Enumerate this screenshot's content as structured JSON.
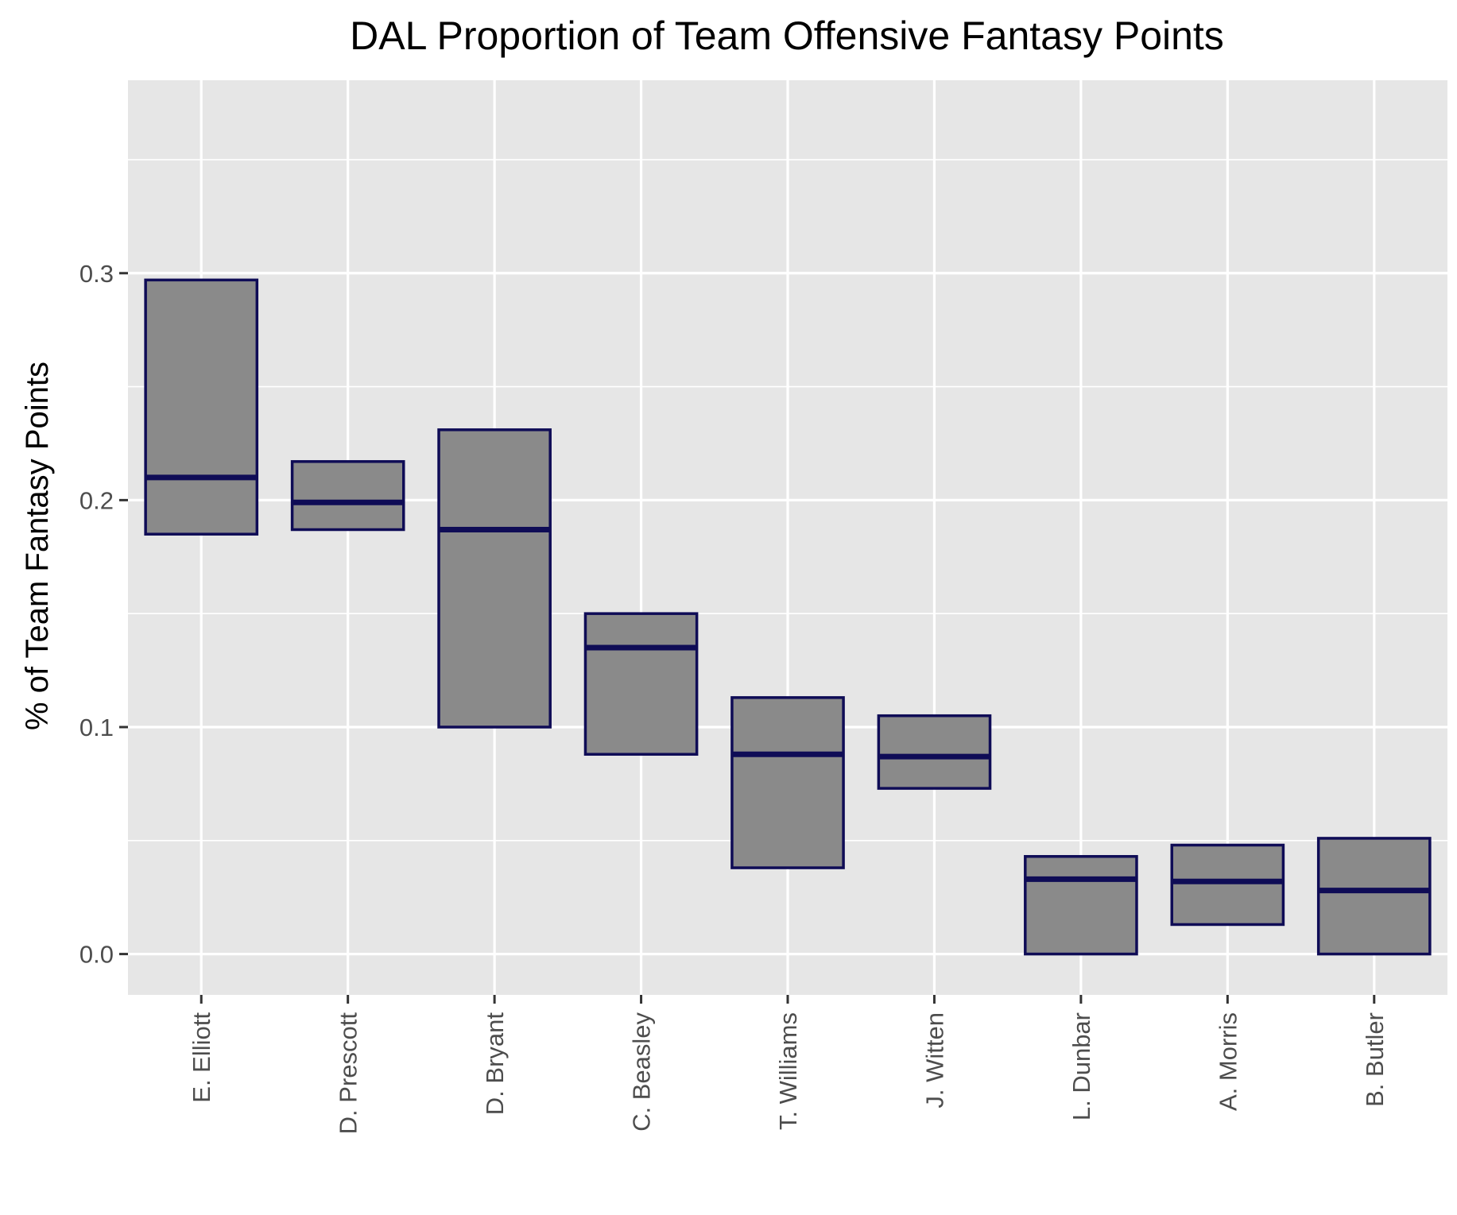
{
  "chart_data": {
    "type": "boxplot",
    "title": "DAL Proportion of Team Offensive Fantasy Points",
    "xlabel": "",
    "ylabel": "% of Team Fantasy Points",
    "ylim": [
      -0.018,
      0.385
    ],
    "yticks": [
      0.0,
      0.1,
      0.2,
      0.3
    ],
    "ytick_labels": [
      "0.0",
      "0.1",
      "0.2",
      "0.3"
    ],
    "grid": true,
    "categories": [
      "E. Elliott",
      "D. Prescott",
      "D. Bryant",
      "C. Beasley",
      "T. Williams",
      "J. Witten",
      "L. Dunbar",
      "A. Morris",
      "B. Butler"
    ],
    "boxes": [
      {
        "low": 0.185,
        "median": 0.21,
        "high": 0.297
      },
      {
        "low": 0.187,
        "median": 0.199,
        "high": 0.217
      },
      {
        "low": 0.1,
        "median": 0.187,
        "high": 0.231
      },
      {
        "low": 0.088,
        "median": 0.135,
        "high": 0.15
      },
      {
        "low": 0.038,
        "median": 0.088,
        "high": 0.113
      },
      {
        "low": 0.073,
        "median": 0.087,
        "high": 0.105
      },
      {
        "low": 0.0,
        "median": 0.033,
        "high": 0.043
      },
      {
        "low": 0.013,
        "median": 0.032,
        "high": 0.048
      },
      {
        "low": 0.0,
        "median": 0.028,
        "high": 0.051
      }
    ],
    "colors": {
      "panel": "#e6e6e6",
      "grid": "#ffffff",
      "box_fill": "#8a8a8a",
      "box_edge": "#0f0c56",
      "median": "#0f0c56",
      "tick": "#333333"
    }
  }
}
